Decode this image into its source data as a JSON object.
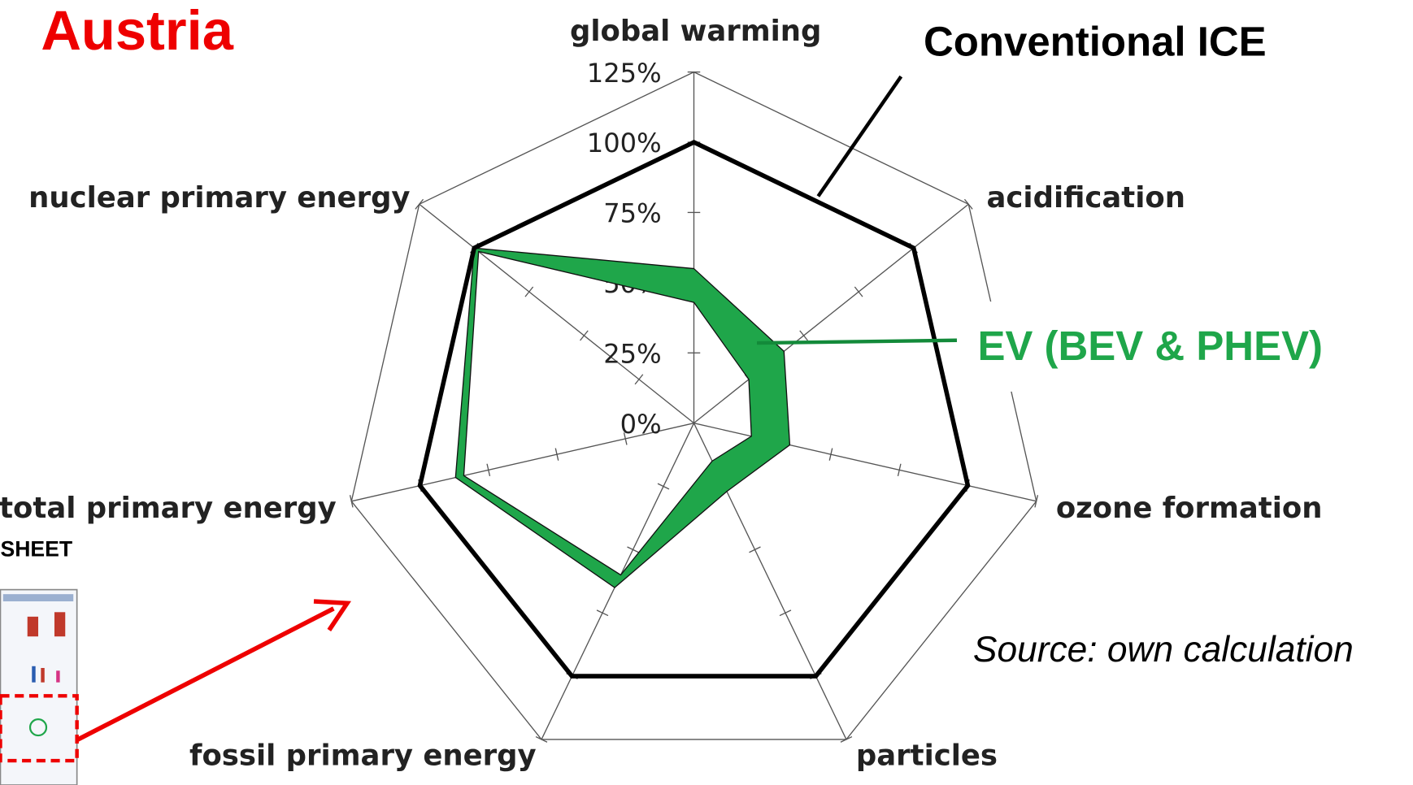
{
  "chart_data": {
    "type": "radar",
    "title": "Austria",
    "categories": [
      "global warming",
      "acidification",
      "ozone formation",
      "particles",
      "fossil primary energy",
      "total primary energy",
      "nuclear primary energy"
    ],
    "series": [
      {
        "name": "Conventional ICE",
        "color": "#000000",
        "values": [
          100,
          100,
          100,
          100,
          100,
          100,
          100
        ]
      },
      {
        "name": "EV (BEV & PHEV)",
        "color": "#1fa64a",
        "values": [
          55,
          41,
          35,
          27,
          65,
          87,
          100
        ],
        "low": [
          43,
          25,
          21,
          15,
          60,
          84,
          98
        ]
      }
    ],
    "ylim": [
      0,
      125
    ],
    "yticks": [
      {
        "value": 0,
        "label": "0%"
      },
      {
        "value": 25,
        "label": "25%"
      },
      {
        "value": 50,
        "label": "50%"
      },
      {
        "value": 75,
        "label": "75%"
      },
      {
        "value": 100,
        "label": "100%"
      },
      {
        "value": 125,
        "label": "125%"
      }
    ],
    "source": "Source: own calculation",
    "sheet_label": "SHEET"
  }
}
